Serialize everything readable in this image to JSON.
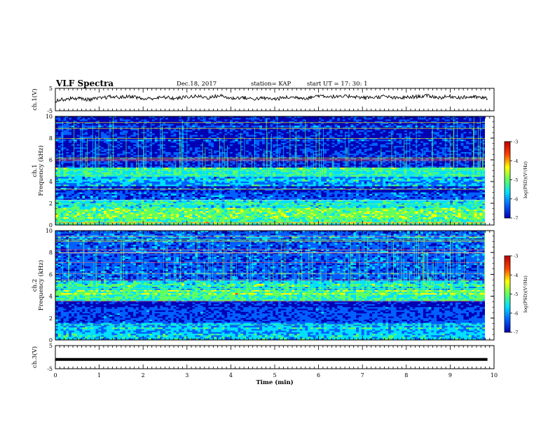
{
  "header": {
    "title": "VLF Spectra",
    "date": "Dec.18, 2017",
    "station": "station= KAP",
    "start": "start  UT =   17: 30: 1"
  },
  "chart_data": [
    {
      "type": "line",
      "panel": "ch1-waveform",
      "ylabel": "ch.1(V)",
      "ylim": [
        -5,
        5
      ],
      "yticks": [
        "5",
        "-5"
      ],
      "x": [
        0.0,
        0.25,
        0.5,
        0.75,
        1.0,
        1.25,
        1.5,
        1.75,
        2.0,
        2.25,
        2.5,
        2.75,
        3.0,
        3.25,
        3.5,
        3.75,
        4.0,
        4.25,
        4.5,
        4.75,
        5.0,
        5.25,
        5.5,
        5.75,
        6.0,
        6.25,
        6.5,
        6.75,
        7.0,
        7.25,
        7.5,
        7.75,
        8.0,
        8.25,
        8.5,
        8.75,
        9.0,
        9.25,
        9.5,
        9.75,
        9.85
      ],
      "values": [
        -0.5,
        0.3,
        0.6,
        0.0,
        0.5,
        1.2,
        1.0,
        1.5,
        0.2,
        0.6,
        1.0,
        0.4,
        1.2,
        1.4,
        0.8,
        1.8,
        0.5,
        0.9,
        0.3,
        0.6,
        0.2,
        0.9,
        1.0,
        0.6,
        1.8,
        1.4,
        1.1,
        1.6,
        0.8,
        1.0,
        1.4,
        0.6,
        0.9,
        1.3,
        1.7,
        0.8,
        1.4,
        0.9,
        1.2,
        0.7,
        0.6
      ]
    },
    {
      "type": "heatmap",
      "panel": "ch1-spectrogram",
      "ylabel": "ch.1",
      "ylabel2": "Frequency (kHz)",
      "ylim": [
        0,
        10
      ],
      "yticks": [
        "0",
        "2",
        "4",
        "6",
        "8",
        "10"
      ],
      "freq_bands_kHz": [
        {
          "from": 0.0,
          "to": 0.6,
          "level": -5.2
        },
        {
          "from": 0.6,
          "to": 1.6,
          "level": -5.0
        },
        {
          "from": 1.6,
          "to": 2.3,
          "level": -5.5
        },
        {
          "from": 2.3,
          "to": 3.0,
          "level": -6.2
        },
        {
          "from": 3.0,
          "to": 3.6,
          "level": -6.6
        },
        {
          "from": 3.6,
          "to": 4.4,
          "level": -6.0
        },
        {
          "from": 4.4,
          "to": 5.3,
          "level": -5.4
        },
        {
          "from": 5.3,
          "to": 6.8,
          "level": -6.5
        },
        {
          "from": 6.8,
          "to": 10.0,
          "level": -6.6
        }
      ],
      "colorbar": {
        "label": "log(PSD)(V²/Hz)",
        "range": [
          -7,
          -3
        ],
        "ticks": [
          "-3",
          "-4",
          "-5",
          "-6",
          "-7"
        ]
      }
    },
    {
      "type": "heatmap",
      "panel": "ch2-spectrogram",
      "ylabel": "ch.2",
      "ylabel2": "Frequency (kHz)",
      "ylim": [
        0,
        10
      ],
      "yticks": [
        "0",
        "2",
        "4",
        "6",
        "8",
        "10"
      ],
      "freq_bands_kHz": [
        {
          "from": 0.0,
          "to": 0.6,
          "level": -5.6
        },
        {
          "from": 0.6,
          "to": 1.6,
          "level": -5.8
        },
        {
          "from": 1.6,
          "to": 3.0,
          "level": -6.3
        },
        {
          "from": 3.0,
          "to": 3.6,
          "level": -6.6
        },
        {
          "from": 3.6,
          "to": 4.6,
          "level": -5.2
        },
        {
          "from": 4.6,
          "to": 5.5,
          "level": -5.6
        },
        {
          "from": 5.5,
          "to": 10.0,
          "level": -6.2
        }
      ],
      "colorbar": {
        "label": "log(PSD)(V²/Hz)",
        "range": [
          -7,
          -3
        ],
        "ticks": [
          "-3",
          "-4",
          "-5",
          "-6",
          "-7"
        ]
      }
    },
    {
      "type": "line",
      "panel": "ch3-waveform",
      "ylabel": "ch.3(V)",
      "ylim": [
        -5,
        5
      ],
      "yticks": [
        "5",
        "-5"
      ],
      "x": [
        0.0,
        9.85
      ],
      "values": [
        -1.0,
        -1.0
      ]
    }
  ],
  "xaxis": {
    "label": "Time (min)",
    "range": [
      0,
      10
    ],
    "ticks": [
      "0",
      "1",
      "2",
      "3",
      "4",
      "5",
      "6",
      "7",
      "8",
      "9",
      "10"
    ]
  },
  "colors": {
    "axis": "#000000",
    "trace": "#000000",
    "colormap": [
      "#0000b4",
      "#0060ff",
      "#00e0ff",
      "#60ff60",
      "#ffff00",
      "#ff4000",
      "#c00000",
      "#ffffff"
    ]
  }
}
